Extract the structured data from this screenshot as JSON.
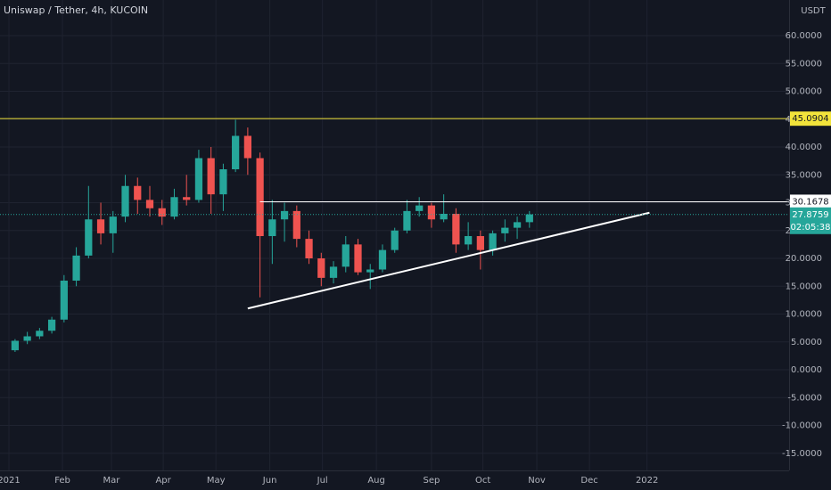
{
  "chart_data": {
    "type": "candlestick",
    "title": "Uniswap / Tether, 4h, KUCOIN",
    "y_unit_label": "USDT",
    "up_color": "#26a69a",
    "down_color": "#ef5350",
    "grid": true,
    "xlim": [
      -0.73,
      63.7
    ],
    "ylim": [
      -18.08,
      66.4
    ],
    "yticks": [
      {
        "value": -15,
        "label": "-15.0000"
      },
      {
        "value": -10,
        "label": "-10.0000"
      },
      {
        "value": -5,
        "label": "-5.0000"
      },
      {
        "value": 0,
        "label": "0.0000"
      },
      {
        "value": 5,
        "label": "5.0000"
      },
      {
        "value": 10,
        "label": "10.0000"
      },
      {
        "value": 15,
        "label": "15.0000"
      },
      {
        "value": 20,
        "label": "20.0000"
      },
      {
        "value": 25,
        "label": "25.0000"
      },
      {
        "value": 30,
        "label": "30.0000"
      },
      {
        "value": 35,
        "label": "35.0000"
      },
      {
        "value": 40,
        "label": "40.0000"
      },
      {
        "value": 45,
        "label": "45.0000"
      },
      {
        "value": 50,
        "label": "50.0000"
      },
      {
        "value": 55,
        "label": "55.0000"
      },
      {
        "value": 60,
        "label": "60.0000"
      }
    ],
    "xticks": [
      {
        "value": 0,
        "label": "2021"
      },
      {
        "value": 4.37,
        "label": "Feb"
      },
      {
        "value": 8.37,
        "label": "Mar"
      },
      {
        "value": 12.6,
        "label": "Apr"
      },
      {
        "value": 16.9,
        "label": "May"
      },
      {
        "value": 21.3,
        "label": "Jun"
      },
      {
        "value": 25.6,
        "label": "Jul"
      },
      {
        "value": 30.0,
        "label": "Aug"
      },
      {
        "value": 34.5,
        "label": "Sep"
      },
      {
        "value": 38.7,
        "label": "Oct"
      },
      {
        "value": 43.1,
        "label": "Nov"
      },
      {
        "value": 47.4,
        "label": "Dec"
      },
      {
        "value": 52.1,
        "label": "2022"
      }
    ],
    "x": [
      0.5,
      1.5,
      2.5,
      3.5,
      4.5,
      5.5,
      6.5,
      7.5,
      8.5,
      9.5,
      10.5,
      11.5,
      12.5,
      13.5,
      14.5,
      15.5,
      16.5,
      17.5,
      18.5,
      19.5,
      20.5,
      21.5,
      22.5,
      23.5,
      24.5,
      25.5,
      26.5,
      27.5,
      28.5,
      29.5,
      30.5,
      31.5,
      32.5,
      33.5,
      34.5,
      35.5,
      36.5,
      37.5,
      38.5,
      39.5,
      40.5,
      41.5,
      42.5
    ],
    "open": [
      3.5,
      5.2,
      6.0,
      7.0,
      9.0,
      16.0,
      20.5,
      27.0,
      24.5,
      27.5,
      33.0,
      30.5,
      29.0,
      27.5,
      31.0,
      30.5,
      38.0,
      31.5,
      36.0,
      42.0,
      38.0,
      24.0,
      27.0,
      28.5,
      23.5,
      20.0,
      16.5,
      18.5,
      22.5,
      17.5,
      18.0,
      21.5,
      25.0,
      28.5,
      29.5,
      27.0,
      28.0,
      22.5,
      24.0,
      21.5,
      24.5,
      25.5,
      26.5
    ],
    "high": [
      5.5,
      6.8,
      7.5,
      9.5,
      17.0,
      22.0,
      33.0,
      30.0,
      28.5,
      35.0,
      34.5,
      33.0,
      30.5,
      32.5,
      35.0,
      39.5,
      40.0,
      37.0,
      44.9,
      43.5,
      39.0,
      30.5,
      30.0,
      29.5,
      25.0,
      21.0,
      19.5,
      24.0,
      23.5,
      19.0,
      22.5,
      25.5,
      30.5,
      31.0,
      30.0,
      31.5,
      29.0,
      26.5,
      25.0,
      25.0,
      27.0,
      27.5,
      28.5
    ],
    "low": [
      3.2,
      4.6,
      5.5,
      6.5,
      8.5,
      15.0,
      20.0,
      22.5,
      21.0,
      26.5,
      28.0,
      27.5,
      26.0,
      27.0,
      29.5,
      30.0,
      28.0,
      28.5,
      35.5,
      35.0,
      13.0,
      19.0,
      23.0,
      22.0,
      19.0,
      15.0,
      15.5,
      17.5,
      17.0,
      14.5,
      17.5,
      21.0,
      24.5,
      27.5,
      25.5,
      26.5,
      21.0,
      21.5,
      18.0,
      20.5,
      23.0,
      23.5,
      25.5
    ],
    "close": [
      5.2,
      6.0,
      7.0,
      9.0,
      16.0,
      20.5,
      27.0,
      24.5,
      27.5,
      33.0,
      30.5,
      29.0,
      27.5,
      31.0,
      30.5,
      38.0,
      31.5,
      36.0,
      42.0,
      38.0,
      24.0,
      27.0,
      28.5,
      23.5,
      20.0,
      16.5,
      18.5,
      22.5,
      17.5,
      18.0,
      21.5,
      25.0,
      28.5,
      29.5,
      27.0,
      28.0,
      22.5,
      24.0,
      21.5,
      24.5,
      25.5,
      26.5,
      27.9
    ],
    "levels": [
      {
        "value": 45.0904,
        "color": "#f2e33b",
        "label_text_color": "#131722"
      },
      {
        "value": 30.1678,
        "color": "#ffffff",
        "start": 20.5,
        "label_text_color": "#131722"
      }
    ],
    "last_price": 27.8759,
    "countdown": "02:05:38",
    "trendline": {
      "x": [
        19.5,
        52.3
      ],
      "y": [
        11.0,
        28.2
      ],
      "color": "#ffffff"
    }
  }
}
